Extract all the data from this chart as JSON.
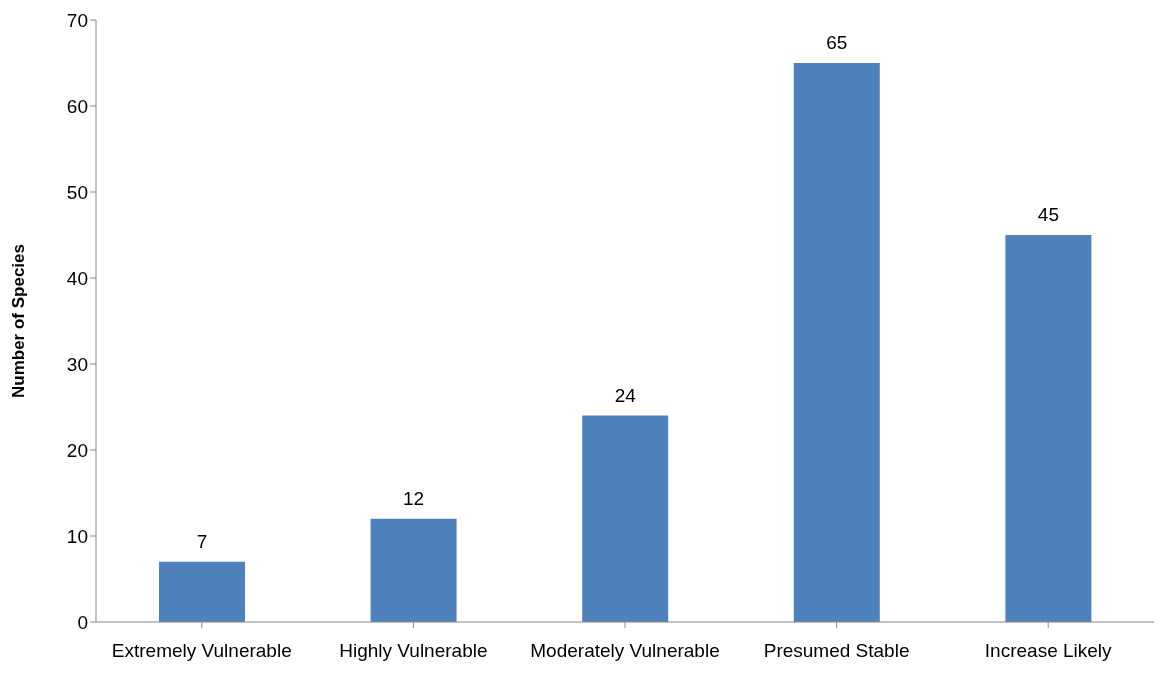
{
  "chart_data": {
    "type": "bar",
    "ylabel": "Number of Species",
    "categories": [
      "Extremely Vulnerable",
      "Highly Vulnerable",
      "Moderately Vulnerable",
      "Presumed Stable",
      "Increase Likely"
    ],
    "values": [
      7,
      12,
      24,
      65,
      45
    ],
    "color": "#4f81bd",
    "ylim": [
      0,
      70
    ],
    "yticks": [
      0,
      10,
      20,
      30,
      40,
      50,
      60,
      70
    ],
    "grid": false,
    "data_labels": true
  }
}
